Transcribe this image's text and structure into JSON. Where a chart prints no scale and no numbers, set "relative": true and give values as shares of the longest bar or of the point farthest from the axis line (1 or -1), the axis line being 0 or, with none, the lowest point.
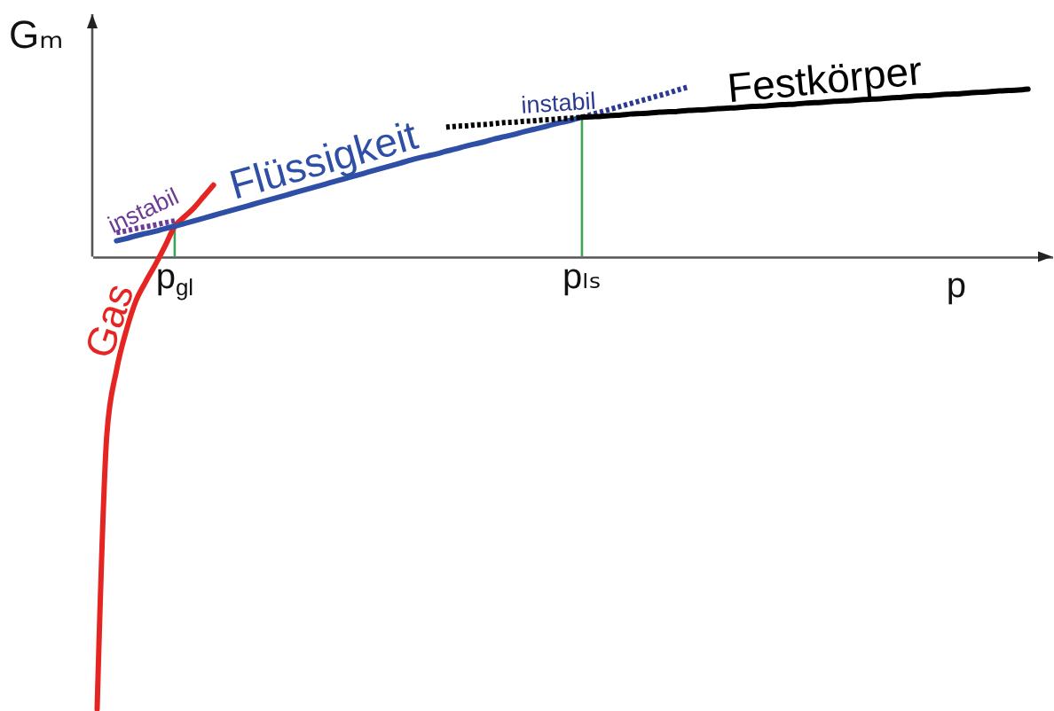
{
  "chart_data": {
    "type": "line",
    "relative": true,
    "xlabel": "p",
    "ylabel": "Gₘ",
    "line_style": "solid",
    "categories": [
      null,
      null,
      null,
      null,
      null,
      null,
      null,
      null,
      "p$_{gl}$",
      null,
      null,
      null,
      null,
      null,
      null,
      null,
      null,
      null,
      null,
      null,
      null,
      null,
      null,
      null,
      null,
      null,
      null,
      null,
      null,
      null,
      null,
      null,
      null,
      null,
      null,
      null,
      null,
      null,
      null,
      null,
      null,
      null,
      null,
      null,
      null,
      null,
      null,
      null,
      null,
      null,
      "pₗₛ",
      null,
      null,
      null,
      null,
      null,
      null,
      null,
      null,
      null,
      null,
      null,
      null,
      null,
      null,
      null,
      null,
      null,
      null,
      null,
      null,
      null,
      null,
      null,
      null,
      null,
      null,
      null,
      null,
      null,
      null,
      null,
      null,
      null,
      null,
      null,
      null,
      null,
      null,
      null,
      null,
      null,
      null,
      null,
      null,
      null,
      null,
      null,
      null
    ],
    "series": [
      {
        "type": "bar",
        "color": "#3aa655",
        "values": [
          null,
          null,
          null,
          null,
          null,
          null,
          null,
          null,
          0.067,
          null,
          null,
          null,
          null,
          null,
          null,
          null,
          null,
          null,
          null,
          null,
          null,
          null,
          null,
          null,
          null,
          null,
          null,
          null,
          null,
          null,
          null,
          null,
          null,
          null,
          null,
          null,
          null,
          null,
          null,
          null,
          null,
          null,
          null,
          null,
          null,
          null,
          null,
          null,
          null,
          null,
          0.308,
          null,
          null,
          null,
          null,
          null,
          null,
          null,
          null,
          null,
          null,
          null,
          null,
          null,
          null,
          null,
          null,
          null,
          null,
          null,
          null,
          null,
          null,
          null,
          null,
          null,
          null,
          null,
          null,
          null,
          null,
          null,
          null,
          null,
          null,
          null,
          null,
          null,
          null,
          null,
          null,
          null,
          null,
          null,
          null,
          null,
          null,
          null,
          null
        ]
      },
      {
        "name": "Gas",
        "color": "#e52521",
        "values": [
          -1,
          -0.394,
          -0.251,
          -0.164,
          -0.098,
          -0.056,
          -0.018,
          0.023,
          0.067,
          0.088,
          0.108,
          0.133,
          0.158,
          null,
          null,
          null,
          null,
          null,
          null,
          null,
          null,
          null,
          null,
          null,
          null,
          null,
          null,
          null,
          null,
          null,
          null,
          null,
          null,
          null,
          null,
          null,
          null,
          null,
          null,
          null,
          null,
          null,
          null,
          null,
          null,
          null,
          null,
          null,
          null,
          null,
          null,
          null,
          null,
          null,
          null,
          null,
          null,
          null,
          null,
          null,
          null,
          null,
          null,
          null,
          null,
          null,
          null,
          null,
          null,
          null,
          null,
          null,
          null,
          null,
          null,
          null,
          null,
          null,
          null,
          null,
          null,
          null,
          null,
          null,
          null,
          null,
          null,
          null,
          null,
          null,
          null,
          null,
          null,
          null,
          null,
          null,
          null,
          null,
          null
        ]
      },
      {
        "name": "Flüssigkeit",
        "color": "#2e4fa5",
        "values": [
          null,
          null,
          0.035,
          0.04,
          0.046,
          0.051,
          0.056,
          0.062,
          0.067,
          0.073,
          0.079,
          0.085,
          0.091,
          0.097,
          0.103,
          0.109,
          0.115,
          0.121,
          0.127,
          0.133,
          0.139,
          0.145,
          0.151,
          0.157,
          0.163,
          0.169,
          0.175,
          0.181,
          0.187,
          0.193,
          0.199,
          0.205,
          0.211,
          0.217,
          0.222,
          0.227,
          0.233,
          0.238,
          0.244,
          0.249,
          0.254,
          0.26,
          0.265,
          0.27,
          0.276,
          0.281,
          0.286,
          0.292,
          0.297,
          0.302,
          0.308,
          null,
          null,
          null,
          null,
          null,
          null,
          null,
          null,
          null,
          null,
          null,
          null,
          null,
          null,
          null,
          null,
          null,
          null,
          null,
          null,
          null,
          null,
          null,
          null,
          null,
          null,
          null,
          null,
          null,
          null,
          null,
          null,
          null,
          null,
          null,
          null,
          null,
          null,
          null,
          null,
          null,
          null,
          null,
          null,
          null,
          null,
          null,
          null
        ]
      },
      {
        "name": "instabil",
        "color": "#6c3b96",
        "line_style": "dotted",
        "values": [
          null,
          null,
          0.053,
          0.057,
          0.062,
          0.066,
          0.07,
          0.075,
          0.079,
          null,
          null,
          null,
          null,
          null,
          null,
          null,
          null,
          null,
          null,
          null,
          null,
          null,
          null,
          null,
          null,
          null,
          null,
          null,
          null,
          null,
          null,
          null,
          null,
          null,
          null,
          null,
          null,
          null,
          null,
          null,
          null,
          null,
          null,
          null,
          null,
          null,
          null,
          null,
          null,
          null,
          null,
          null,
          null,
          null,
          null,
          null,
          null,
          null,
          null,
          null,
          null,
          null,
          null,
          null,
          null,
          null,
          null,
          null,
          null,
          null,
          null,
          null,
          null,
          null,
          null,
          null,
          null,
          null,
          null,
          null,
          null,
          null,
          null,
          null,
          null,
          null,
          null,
          null,
          null,
          null,
          null,
          null,
          null,
          null,
          null,
          null,
          null,
          null,
          null
        ]
      },
      {
        "name": "instabil",
        "color": "#2b3990",
        "line_style": "dotted",
        "values": [
          null,
          null,
          null,
          null,
          null,
          null,
          null,
          null,
          null,
          null,
          null,
          null,
          null,
          null,
          null,
          null,
          null,
          null,
          null,
          null,
          null,
          null,
          null,
          null,
          null,
          null,
          null,
          null,
          null,
          null,
          null,
          null,
          null,
          null,
          null,
          null,
          null,
          null,
          null,
          null,
          null,
          null,
          null,
          null,
          null,
          null,
          null,
          null,
          null,
          null,
          0.308,
          0.314,
          0.32,
          0.326,
          0.332,
          0.338,
          0.344,
          0.35,
          0.356,
          0.362,
          0.369,
          0.375,
          null,
          null,
          null,
          null,
          null,
          null,
          null,
          null,
          null,
          null,
          null,
          null,
          null,
          null,
          null,
          null,
          null,
          null,
          null,
          null,
          null,
          null,
          null,
          null,
          null,
          null,
          null,
          null,
          null,
          null,
          null,
          null,
          null,
          null,
          null,
          null,
          null
        ]
      },
      {
        "name": "Festkörper",
        "color": "#000000",
        "values": [
          null,
          null,
          null,
          null,
          null,
          null,
          null,
          null,
          null,
          null,
          null,
          null,
          null,
          null,
          null,
          null,
          null,
          null,
          null,
          null,
          null,
          null,
          null,
          null,
          null,
          null,
          null,
          null,
          null,
          null,
          null,
          null,
          null,
          null,
          null,
          null,
          null,
          null,
          null,
          null,
          null,
          null,
          null,
          null,
          null,
          null,
          null,
          null,
          null,
          null,
          0.308,
          0.309,
          0.31,
          0.312,
          0.313,
          0.315,
          0.316,
          0.317,
          0.319,
          0.32,
          0.321,
          0.323,
          0.324,
          0.325,
          0.327,
          0.328,
          0.329,
          0.331,
          0.332,
          0.333,
          0.335,
          0.336,
          0.337,
          0.339,
          0.34,
          0.341,
          0.343,
          0.344,
          0.345,
          0.347,
          0.348,
          0.349,
          0.351,
          0.352,
          0.354,
          0.355,
          0.356,
          0.358,
          0.359,
          0.36,
          0.362,
          0.363,
          0.364,
          0.366,
          0.367,
          0.368,
          0.37,
          null,
          null
        ]
      },
      {
        "color": "#000000",
        "line_style": "dotted",
        "values": [
          null,
          null,
          null,
          null,
          null,
          null,
          null,
          null,
          null,
          null,
          null,
          null,
          null,
          null,
          null,
          null,
          null,
          null,
          null,
          null,
          null,
          null,
          null,
          null,
          null,
          null,
          null,
          null,
          null,
          null,
          null,
          null,
          null,
          null,
          null,
          null,
          0.286,
          0.288,
          0.289,
          0.291,
          0.292,
          0.294,
          0.296,
          0.297,
          0.299,
          0.3,
          0.302,
          0.303,
          0.305,
          0.306,
          0.308,
          null,
          null,
          null,
          null,
          null,
          null,
          null,
          null,
          null,
          null,
          null,
          null,
          null,
          null,
          null,
          null,
          null,
          null,
          null,
          null,
          null,
          null,
          null,
          null,
          null,
          null,
          null,
          null,
          null,
          null,
          null,
          null,
          null,
          null,
          null,
          null,
          null,
          null,
          null,
          null,
          null,
          null,
          null,
          null,
          null,
          null,
          null,
          null
        ]
      }
    ]
  }
}
